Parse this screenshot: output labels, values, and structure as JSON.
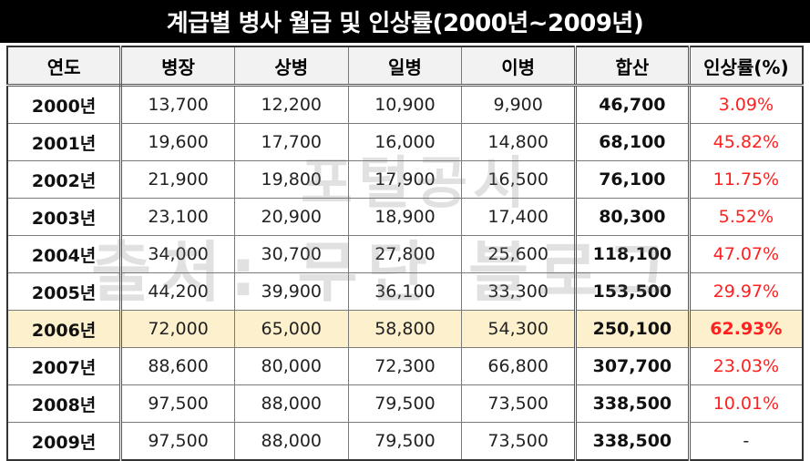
{
  "title": "계급별 병사 월급 및 인상률(2000년~2009년)",
  "headers": [
    "연도",
    "병장",
    "상병",
    "일병",
    "이병",
    "합산",
    "인상률(%)"
  ],
  "rows": [
    {
      "year": "2000년",
      "sergeant": "13,700",
      "corporal": "12,200",
      "pfc": "10,900",
      "private": "9,900",
      "total": "46,700",
      "rate": "3.09%"
    },
    {
      "year": "2001년",
      "sergeant": "19,600",
      "corporal": "17,700",
      "pfc": "16,000",
      "private": "14,800",
      "total": "68,100",
      "rate": "45.82%"
    },
    {
      "year": "2002년",
      "sergeant": "21,900",
      "corporal": "19,800",
      "pfc": "17,900",
      "private": "16,500",
      "total": "76,100",
      "rate": "11.75%"
    },
    {
      "year": "2003년",
      "sergeant": "23,100",
      "corporal": "20,900",
      "pfc": "18,900",
      "private": "17,400",
      "total": "80,300",
      "rate": "5.52%"
    },
    {
      "year": "2004년",
      "sergeant": "34,000",
      "corporal": "30,700",
      "pfc": "27,800",
      "private": "25,600",
      "total": "118,100",
      "rate": "47.07%"
    },
    {
      "year": "2005년",
      "sergeant": "44,200",
      "corporal": "39,900",
      "pfc": "36,100",
      "private": "33,300",
      "total": "153,500",
      "rate": "29.97%"
    },
    {
      "year": "2006년",
      "sergeant": "72,000",
      "corporal": "65,000",
      "pfc": "58,800",
      "private": "54,300",
      "total": "250,100",
      "rate": "62.93%",
      "highlight": true
    },
    {
      "year": "2007년",
      "sergeant": "88,600",
      "corporal": "80,000",
      "pfc": "72,300",
      "private": "66,800",
      "total": "307,700",
      "rate": "23.03%"
    },
    {
      "year": "2008년",
      "sergeant": "97,500",
      "corporal": "88,000",
      "pfc": "79,500",
      "private": "73,500",
      "total": "338,500",
      "rate": "10.01%"
    },
    {
      "year": "2009년",
      "sergeant": "97,500",
      "corporal": "88,000",
      "pfc": "79,500",
      "private": "73,500",
      "total": "338,500",
      "rate": "-"
    }
  ],
  "colors": {
    "rate": "#ff2020",
    "highlight_row": "#fdf0cc",
    "title_bg": "#000000"
  }
}
